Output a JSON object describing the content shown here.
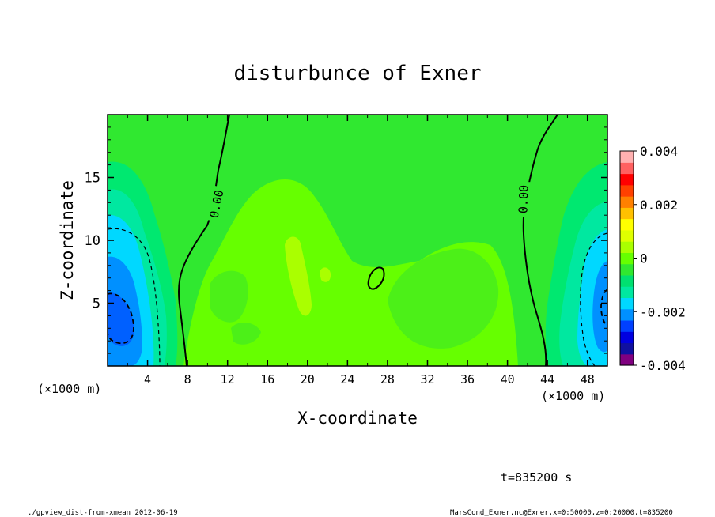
{
  "chart_data": {
    "type": "heatmap",
    "title": "disturbunce of Exner",
    "xlabel": "X-coordinate",
    "ylabel": "Z-coordinate",
    "xunit_left": "(×1000 m)",
    "xunit_right": "(×1000 m)",
    "xlim": [
      0,
      50
    ],
    "ylim": [
      0,
      20
    ],
    "xticks": [
      4,
      8,
      12,
      16,
      20,
      24,
      28,
      32,
      36,
      40,
      44,
      48
    ],
    "yticks": [
      5,
      10,
      15
    ],
    "contour_labels": [
      "0.00",
      "0.00"
    ],
    "colorbar": {
      "min": -0.004,
      "max": 0.004,
      "ticks": [
        "0.004",
        "0.002",
        "0",
        "-0.002",
        "-0.004"
      ],
      "tick_values": [
        0.004,
        0.002,
        0,
        -0.002,
        -0.004
      ],
      "colors": [
        "#800080",
        "#1010a0",
        "#0000e0",
        "#0040ff",
        "#0090ff",
        "#00d8ff",
        "#00e8a0",
        "#00e070",
        "#30e830",
        "#66ff00",
        "#aaff00",
        "#dfff00",
        "#ffff00",
        "#ffc000",
        "#ff8000",
        "#ff4000",
        "#ff0000",
        "#ff6060",
        "#ffb0b0"
      ]
    },
    "field_description": "green near-zero field; positive (yellow-green) core around x=16-36 km; negative (cyan/blue) lobes near both lateral walls below z=10 km"
  },
  "footer": {
    "time": "t=835200 s",
    "left_note": "./gpview_dist-from-xmean  2012-06-19",
    "right_note": "MarsCond_Exner.nc@Exner,x=0:50000,z=0:20000,t=835200"
  }
}
